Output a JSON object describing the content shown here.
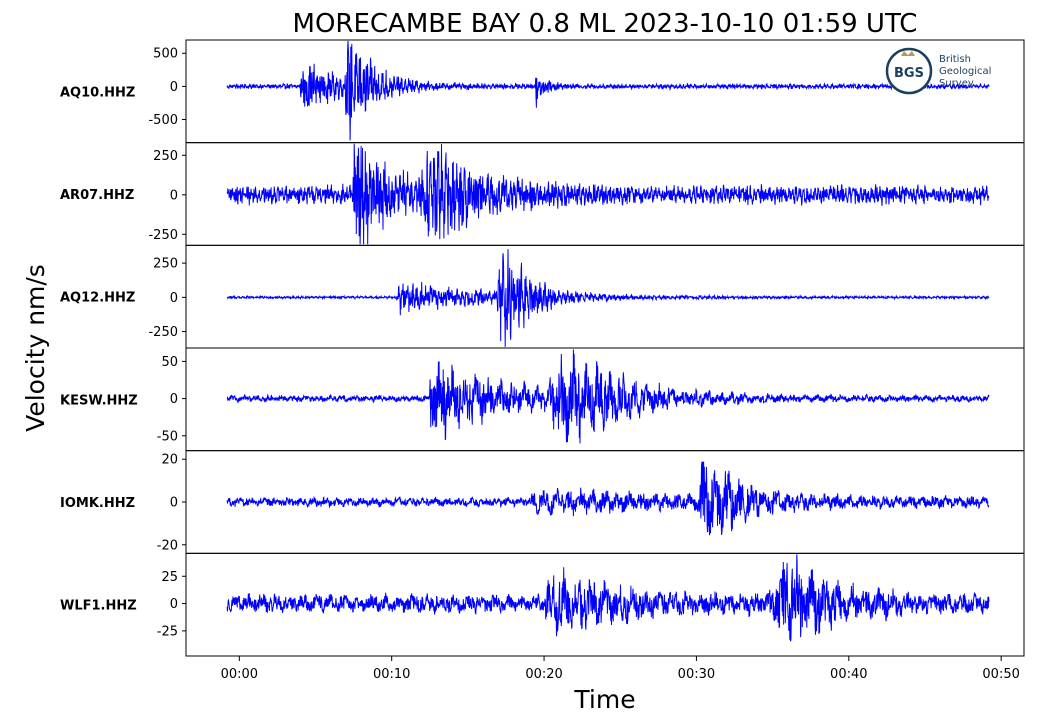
{
  "chart_data": {
    "type": "line",
    "title": "MORECAMBE BAY 0.8 ML   2023-10-10 01:59 UTC",
    "xlabel": "Time",
    "ylabel": "Velocity nm/s",
    "x_ticks": [
      "00:00",
      "00:10",
      "00:20",
      "00:30",
      "00:40",
      "00:50"
    ],
    "x_tick_seconds": [
      0,
      10,
      20,
      30,
      40,
      50
    ],
    "xlim_seconds": [
      -3.5,
      51.5
    ],
    "trace_span_seconds": [
      -0.8,
      49.2
    ],
    "line_color": "#0000ff",
    "grid": false,
    "logo": {
      "lines": [
        "British",
        "Geological",
        "Survey"
      ],
      "mark": "BGS"
    },
    "panels": [
      {
        "station": "AQ10.HHZ",
        "ylim": [
          -850,
          700
        ],
        "yticks": [
          500,
          0,
          -500
        ],
        "ytick_labels": [
          "500",
          "0",
          "-500"
        ],
        "noise": 35,
        "noise_period": 0.25,
        "bursts": [
          {
            "t": 4.3,
            "amp": 330,
            "rise": 0.4,
            "decay": 2.5
          },
          {
            "t": 7.2,
            "amp": 650,
            "rise": 0.3,
            "decay": 1.6
          },
          {
            "t": 19.5,
            "amp": 270,
            "rise": 0.15,
            "decay": 0.6
          }
        ]
      },
      {
        "station": "AR07.HHZ",
        "ylim": [
          -320,
          330
        ],
        "yticks": [
          250,
          0,
          -250
        ],
        "ytick_labels": [
          "250",
          "0",
          "-250"
        ],
        "noise": 55,
        "noise_period": 0.25,
        "bursts": [
          {
            "t": 7.5,
            "amp": 300,
            "rise": 0.05,
            "decay": 2.5
          },
          {
            "t": 12.5,
            "amp": 240,
            "rise": 0.8,
            "decay": 3.5
          }
        ]
      },
      {
        "station": "AQ12.HHZ",
        "ylim": [
          -370,
          380
        ],
        "yticks": [
          250,
          0,
          -250
        ],
        "ytick_labels": [
          "250",
          "0",
          "-250"
        ],
        "noise": 8,
        "noise_period": 0.3,
        "bursts": [
          {
            "t": 10.5,
            "amp": 110,
            "rise": 0.2,
            "decay": 6
          },
          {
            "t": 17.2,
            "amp": 340,
            "rise": 0.4,
            "decay": 1.8
          }
        ]
      },
      {
        "station": "KESW.HHZ",
        "ylim": [
          -70,
          68
        ],
        "yticks": [
          50,
          0,
          -50
        ],
        "ytick_labels": [
          "50",
          "0",
          "-50"
        ],
        "noise": 4,
        "noise_period": 0.8,
        "bursts": [
          {
            "t": 12.5,
            "amp": 50,
            "rise": 0.05,
            "decay": 5
          },
          {
            "t": 21.5,
            "amp": 60,
            "rise": 1.5,
            "decay": 3.5
          }
        ]
      },
      {
        "station": "IOMK.HHZ",
        "ylim": [
          -24,
          24
        ],
        "yticks": [
          20,
          0,
          -20
        ],
        "ytick_labels": [
          "20",
          "0",
          "-20"
        ],
        "noise": 2,
        "noise_period": 0.8,
        "bursts": [
          {
            "t": 20,
            "amp": 4,
            "rise": 1.5,
            "decay": 14
          },
          {
            "t": 30.5,
            "amp": 20,
            "rise": 0.5,
            "decay": 2.2
          }
        ]
      },
      {
        "station": "WLF1.HHZ",
        "ylim": [
          -48,
          46
        ],
        "yticks": [
          25,
          0,
          -25
        ],
        "ytick_labels": [
          "25",
          "0",
          "-25"
        ],
        "noise": 8,
        "noise_period": 0.9,
        "bursts": [
          {
            "t": 20.3,
            "amp": 22,
            "rise": 0.3,
            "decay": 5
          },
          {
            "t": 35.8,
            "amp": 40,
            "rise": 1.2,
            "decay": 3
          }
        ]
      }
    ]
  }
}
